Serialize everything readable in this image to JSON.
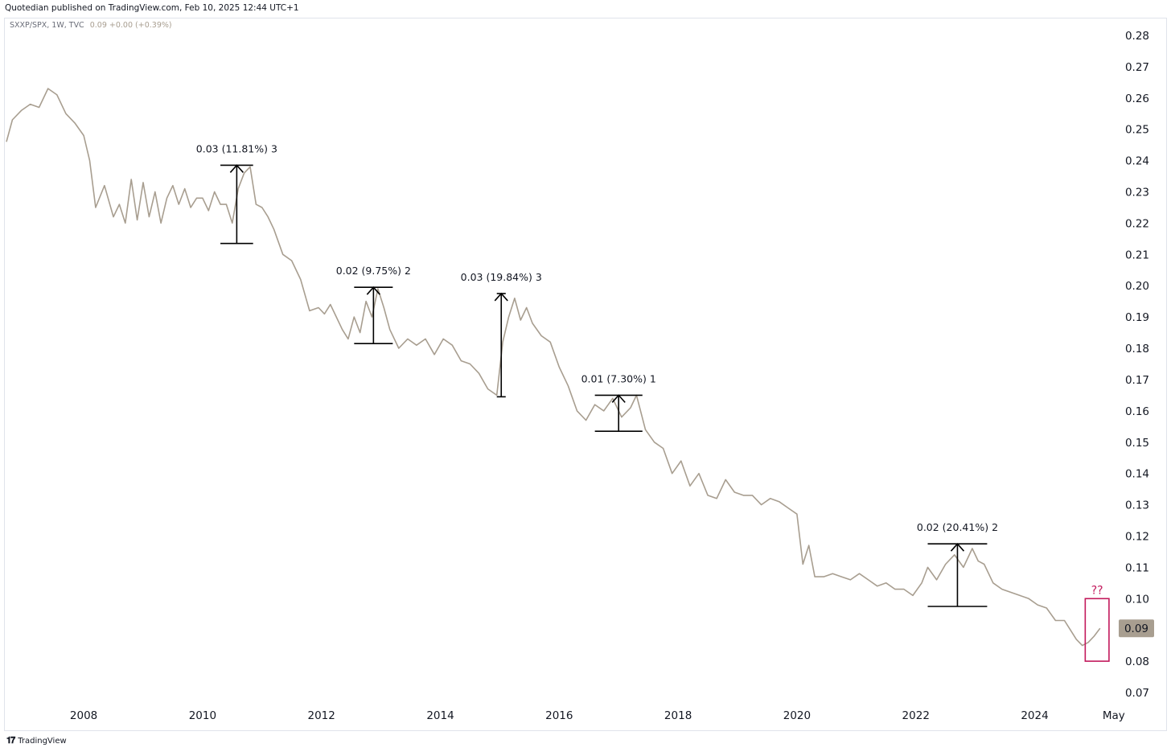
{
  "header": {
    "publisher_text": "Quotedian published on TradingView.com, Feb 10, 2025 12:44 UTC+1",
    "symbol_text": "SXXP/SPX, 1W, TVC",
    "last_value_text": "0.09 +0.00 (+0.39%)"
  },
  "footer": {
    "logo_text": "TradingView"
  },
  "colors": {
    "price_line": "#a89e90",
    "price_badge": "#a89e90",
    "highlight_box": "#c2185b",
    "measure": "#000000"
  },
  "chart_data": {
    "type": "line",
    "title": "",
    "xlabel": "",
    "ylabel": "",
    "ylim": [
      0.07,
      0.28
    ],
    "x_range": [
      2006.7,
      2025.4
    ],
    "x_ticks": [
      {
        "value": 2008,
        "label": "2008"
      },
      {
        "value": 2010,
        "label": "2010"
      },
      {
        "value": 2012,
        "label": "2012"
      },
      {
        "value": 2014,
        "label": "2014"
      },
      {
        "value": 2016,
        "label": "2016"
      },
      {
        "value": 2018,
        "label": "2018"
      },
      {
        "value": 2020,
        "label": "2020"
      },
      {
        "value": 2022,
        "label": "2022"
      },
      {
        "value": 2024,
        "label": "2024"
      },
      {
        "value": 2025.33,
        "label": "May"
      }
    ],
    "y_ticks": [
      "0.28",
      "0.27",
      "0.26",
      "0.25",
      "0.24",
      "0.23",
      "0.22",
      "0.21",
      "0.20",
      "0.19",
      "0.18",
      "0.17",
      "0.16",
      "0.15",
      "0.14",
      "0.13",
      "0.12",
      "0.11",
      "0.10",
      "0.09",
      "0.08",
      "0.07"
    ],
    "last_price_label": "0.09",
    "last_price_value": 0.0905,
    "series": [
      {
        "x": [
          2006.7,
          2006.8,
          2006.95,
          2007.1,
          2007.25,
          2007.4,
          2007.55,
          2007.7,
          2007.85,
          2008.0,
          2008.1,
          2008.2,
          2008.35,
          2008.5,
          2008.6,
          2008.7,
          2008.8,
          2008.9,
          2009.0,
          2009.1,
          2009.2,
          2009.3,
          2009.4,
          2009.5,
          2009.6,
          2009.7,
          2009.8,
          2009.9,
          2010.0,
          2010.1,
          2010.2,
          2010.3,
          2010.4,
          2010.5,
          2010.6,
          2010.7,
          2010.8,
          2010.9,
          2011.0,
          2011.1,
          2011.2,
          2011.35,
          2011.5,
          2011.65,
          2011.8,
          2011.95,
          2012.05,
          2012.15,
          2012.25,
          2012.35,
          2012.45,
          2012.55,
          2012.65,
          2012.75,
          2012.85,
          2012.95,
          2013.05,
          2013.15,
          2013.3,
          2013.45,
          2013.6,
          2013.75,
          2013.9,
          2014.05,
          2014.2,
          2014.35,
          2014.5,
          2014.65,
          2014.8,
          2014.95,
          2015.05,
          2015.15,
          2015.25,
          2015.35,
          2015.45,
          2015.55,
          2015.7,
          2015.85,
          2016.0,
          2016.15,
          2016.3,
          2016.45,
          2016.6,
          2016.75,
          2016.9,
          2017.05,
          2017.2,
          2017.3,
          2017.45,
          2017.6,
          2017.75,
          2017.9,
          2018.05,
          2018.2,
          2018.35,
          2018.5,
          2018.65,
          2018.8,
          2018.95,
          2019.1,
          2019.25,
          2019.4,
          2019.55,
          2019.7,
          2019.85,
          2020.0,
          2020.1,
          2020.2,
          2020.3,
          2020.45,
          2020.6,
          2020.75,
          2020.9,
          2021.05,
          2021.2,
          2021.35,
          2021.5,
          2021.65,
          2021.8,
          2021.95,
          2022.1,
          2022.2,
          2022.35,
          2022.5,
          2022.65,
          2022.8,
          2022.95,
          2023.05,
          2023.15,
          2023.3,
          2023.45,
          2023.6,
          2023.75,
          2023.9,
          2024.05,
          2024.2,
          2024.35,
          2024.5,
          2024.6,
          2024.7,
          2024.8,
          2024.9,
          2025.0,
          2025.1
        ],
        "values": [
          0.246,
          0.253,
          0.256,
          0.258,
          0.257,
          0.263,
          0.261,
          0.255,
          0.252,
          0.248,
          0.24,
          0.225,
          0.232,
          0.222,
          0.226,
          0.22,
          0.234,
          0.221,
          0.233,
          0.222,
          0.23,
          0.22,
          0.228,
          0.232,
          0.226,
          0.231,
          0.225,
          0.228,
          0.228,
          0.224,
          0.23,
          0.226,
          0.226,
          0.22,
          0.231,
          0.236,
          0.238,
          0.226,
          0.225,
          0.222,
          0.218,
          0.21,
          0.208,
          0.202,
          0.192,
          0.193,
          0.191,
          0.194,
          0.19,
          0.186,
          0.183,
          0.19,
          0.185,
          0.195,
          0.19,
          0.199,
          0.193,
          0.186,
          0.18,
          0.183,
          0.181,
          0.183,
          0.178,
          0.183,
          0.181,
          0.176,
          0.175,
          0.172,
          0.167,
          0.165,
          0.182,
          0.19,
          0.196,
          0.189,
          0.193,
          0.188,
          0.184,
          0.182,
          0.174,
          0.168,
          0.16,
          0.157,
          0.162,
          0.16,
          0.164,
          0.158,
          0.161,
          0.165,
          0.154,
          0.15,
          0.148,
          0.14,
          0.144,
          0.136,
          0.14,
          0.133,
          0.132,
          0.138,
          0.134,
          0.133,
          0.133,
          0.13,
          0.132,
          0.131,
          0.129,
          0.127,
          0.111,
          0.117,
          0.107,
          0.107,
          0.108,
          0.107,
          0.106,
          0.108,
          0.106,
          0.104,
          0.105,
          0.103,
          0.103,
          0.101,
          0.105,
          0.11,
          0.106,
          0.111,
          0.114,
          0.11,
          0.116,
          0.112,
          0.111,
          0.105,
          0.103,
          0.102,
          0.101,
          0.1,
          0.098,
          0.097,
          0.093,
          0.093,
          0.09,
          0.087,
          0.085,
          0.086,
          0.088,
          0.0905
        ]
      }
    ],
    "annotations": [
      {
        "label": "0.03 (11.81%) 3",
        "x": [
          2010.3,
          2010.85
        ],
        "from": 0.2135,
        "to": 0.2385
      },
      {
        "label": "0.02 (9.75%) 2",
        "x": [
          2012.55,
          2013.2
        ],
        "from": 0.1815,
        "to": 0.1995
      },
      {
        "label": "0.03 (19.84%) 3",
        "x": [
          2014.95,
          2015.1
        ],
        "from": 0.1645,
        "to": 0.1975
      },
      {
        "label": "0.01 (7.30%) 1",
        "x": [
          2016.6,
          2017.4
        ],
        "from": 0.1535,
        "to": 0.165
      },
      {
        "label": "0.02 (20.41%) 2",
        "x": [
          2022.2,
          2023.2
        ],
        "from": 0.0975,
        "to": 0.1175
      }
    ],
    "highlight": {
      "label": "??",
      "x": [
        2024.85,
        2025.25
      ],
      "y": [
        0.08,
        0.1
      ]
    }
  }
}
